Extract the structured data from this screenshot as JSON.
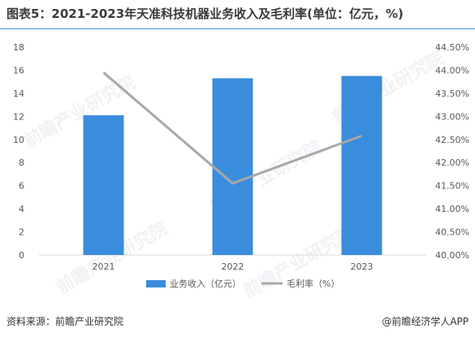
{
  "title": "图表5：2021-2023年天准科技机器业务收入及毛利率(单位：亿元，%)",
  "watermark_text": "前瞻产业研究院",
  "source": "资料来源：前瞻产业研究院",
  "credit": "@前瞻经济学人APP",
  "colors": {
    "bar": "#3a8cdc",
    "line": "#a8a8a8",
    "axis": "#d9d9d9",
    "tick": "#595959"
  },
  "chart_data": {
    "type": "bar",
    "categories": [
      "2021",
      "2022",
      "2023"
    ],
    "series": [
      {
        "name": "业务收入（亿元）",
        "type": "bar",
        "axis": "left",
        "values": [
          12.1,
          15.3,
          15.5
        ]
      },
      {
        "name": "毛利率（%）",
        "type": "line",
        "axis": "right",
        "values": [
          43.95,
          41.55,
          42.58
        ]
      }
    ],
    "y_left": {
      "min": 0,
      "max": 18,
      "ticks": [
        "0",
        "2",
        "4",
        "6",
        "8",
        "10",
        "12",
        "14",
        "16",
        "18"
      ]
    },
    "y_right": {
      "min": 40.0,
      "max": 44.5,
      "ticks": [
        "40.00%",
        "40.50%",
        "41.00%",
        "41.50%",
        "42.00%",
        "42.50%",
        "43.00%",
        "43.50%",
        "44.00%",
        "44.50%"
      ]
    },
    "legend_position": "bottom",
    "grid": false
  }
}
